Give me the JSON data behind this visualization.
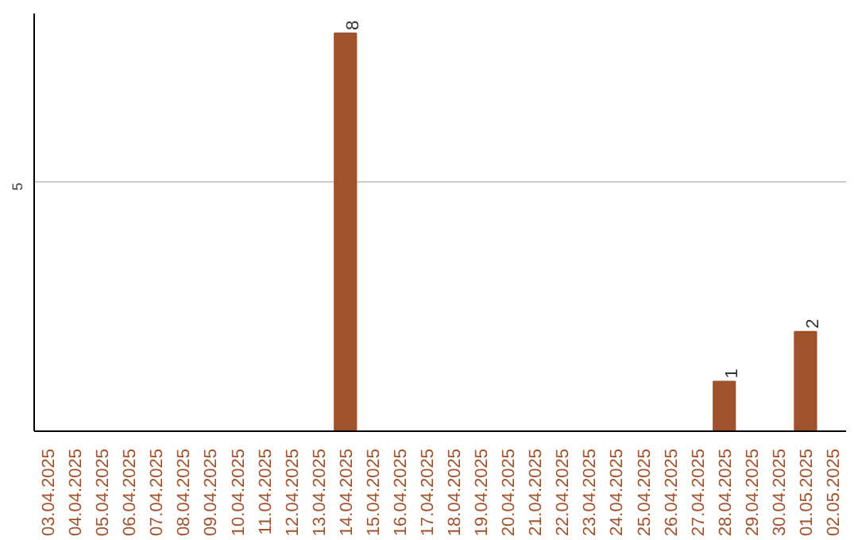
{
  "chart_data": {
    "type": "bar",
    "categories": [
      "03.04.2025",
      "04.04.2025",
      "05.04.2025",
      "06.04.2025",
      "07.04.2025",
      "08.04.2025",
      "09.04.2025",
      "10.04.2025",
      "11.04.2025",
      "12.04.2025",
      "13.04.2025",
      "14.04.2025",
      "15.04.2025",
      "16.04.2025",
      "17.04.2025",
      "18.04.2025",
      "19.04.2025",
      "20.04.2025",
      "21.04.2025",
      "22.04.2025",
      "23.04.2025",
      "24.04.2025",
      "25.04.2025",
      "26.04.2025",
      "27.04.2025",
      "28.04.2025",
      "29.04.2025",
      "30.04.2025",
      "01.05.2025",
      "02.05.2025"
    ],
    "values": [
      0,
      0,
      0,
      0,
      0,
      0,
      0,
      0,
      0,
      0,
      0,
      8,
      0,
      0,
      0,
      0,
      0,
      0,
      0,
      0,
      0,
      0,
      0,
      0,
      0,
      1,
      0,
      0,
      2,
      0
    ],
    "value_labels": [
      null,
      null,
      null,
      null,
      null,
      null,
      null,
      null,
      null,
      null,
      null,
      "8",
      null,
      null,
      null,
      null,
      null,
      null,
      null,
      null,
      null,
      null,
      null,
      null,
      null,
      "1",
      null,
      null,
      "2",
      null
    ],
    "color": "#a0522d",
    "ylim": [
      0,
      8.4
    ],
    "yticks": [
      5
    ],
    "grid": "y"
  }
}
